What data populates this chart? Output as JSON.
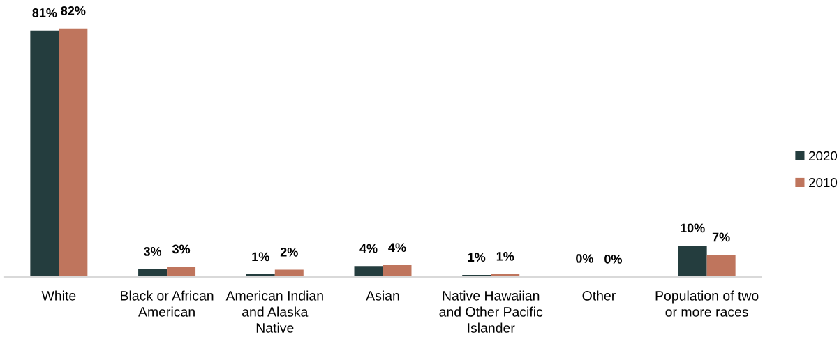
{
  "chart_data": {
    "type": "bar",
    "categories": [
      "White",
      "Black or African\nAmerican",
      "American Indian\nand Alaska\nNative",
      "Asian",
      "Native Hawaiian\nand Other Pacific\nIslander",
      "Other",
      "Population of two\nor more races"
    ],
    "series": [
      {
        "name": "2020",
        "color": "#243d3e",
        "values": [
          81.0,
          2.6,
          0.9,
          3.6,
          0.7,
          0.3,
          10.3
        ],
        "value_labels": [
          "81%",
          "3%",
          "1%",
          "4%",
          "1%",
          "0%",
          "10%"
        ]
      },
      {
        "name": "2010",
        "color": "#bf755d",
        "values": [
          81.7,
          3.4,
          2.4,
          3.9,
          1.0,
          0.1,
          7.3
        ],
        "value_labels": [
          "82%",
          "3%",
          "2%",
          "4%",
          "1%",
          "0%",
          "7%"
        ]
      }
    ],
    "legend": "right",
    "tick_labels": "x"
  }
}
